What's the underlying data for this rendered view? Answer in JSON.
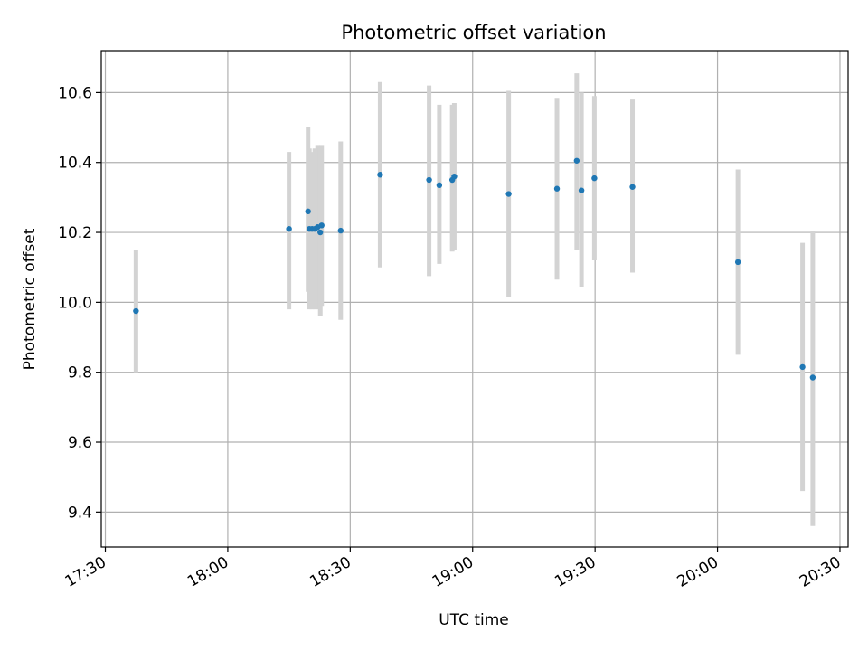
{
  "chart_data": {
    "type": "scatter",
    "title": "Photometric offset variation",
    "xlabel": "UTC time",
    "ylabel": "Photometric offset",
    "grid": true,
    "xlim": [
      "17:29",
      "20:32"
    ],
    "ylim": [
      9.3,
      10.72
    ],
    "x_ticks": [
      "17:30",
      "18:00",
      "18:30",
      "19:00",
      "19:30",
      "20:00",
      "20:30"
    ],
    "y_ticks": [
      9.4,
      9.6,
      9.8,
      10.0,
      10.2,
      10.4,
      10.6
    ],
    "colors": {
      "point": "#1f77b4",
      "errorbar": "#d3d3d3",
      "grid": "#b0b0b0"
    },
    "points": [
      {
        "x": "17:37:30",
        "y": 9.975,
        "ylow": 9.8,
        "yhigh": 10.15
      },
      {
        "x": "18:15:00",
        "y": 10.21,
        "ylow": 9.98,
        "yhigh": 10.43
      },
      {
        "x": "18:19:40",
        "y": 10.26,
        "ylow": 10.03,
        "yhigh": 10.5
      },
      {
        "x": "18:20:00",
        "y": 10.21,
        "ylow": 9.98,
        "yhigh": 10.44
      },
      {
        "x": "18:20:40",
        "y": 10.21,
        "ylow": 9.98,
        "yhigh": 10.43
      },
      {
        "x": "18:21:20",
        "y": 10.21,
        "ylow": 9.98,
        "yhigh": 10.44
      },
      {
        "x": "18:22:00",
        "y": 10.215,
        "ylow": 9.98,
        "yhigh": 10.45
      },
      {
        "x": "18:22:40",
        "y": 10.2,
        "ylow": 9.96,
        "yhigh": 10.44
      },
      {
        "x": "18:23:00",
        "y": 10.22,
        "ylow": 9.99,
        "yhigh": 10.45
      },
      {
        "x": "18:27:40",
        "y": 10.205,
        "ylow": 9.95,
        "yhigh": 10.46
      },
      {
        "x": "18:37:20",
        "y": 10.365,
        "ylow": 10.1,
        "yhigh": 10.63
      },
      {
        "x": "18:49:20",
        "y": 10.35,
        "ylow": 10.075,
        "yhigh": 10.62
      },
      {
        "x": "18:51:50",
        "y": 10.335,
        "ylow": 10.11,
        "yhigh": 10.565
      },
      {
        "x": "18:55:00",
        "y": 10.35,
        "ylow": 10.145,
        "yhigh": 10.565
      },
      {
        "x": "18:55:30",
        "y": 10.36,
        "ylow": 10.15,
        "yhigh": 10.57
      },
      {
        "x": "19:08:50",
        "y": 10.31,
        "ylow": 10.015,
        "yhigh": 10.605
      },
      {
        "x": "19:20:40",
        "y": 10.325,
        "ylow": 10.065,
        "yhigh": 10.585
      },
      {
        "x": "19:25:30",
        "y": 10.405,
        "ylow": 10.15,
        "yhigh": 10.655
      },
      {
        "x": "19:26:40",
        "y": 10.32,
        "ylow": 10.045,
        "yhigh": 10.6
      },
      {
        "x": "19:29:50",
        "y": 10.355,
        "ylow": 10.12,
        "yhigh": 10.59
      },
      {
        "x": "19:39:10",
        "y": 10.33,
        "ylow": 10.085,
        "yhigh": 10.58
      },
      {
        "x": "20:05:00",
        "y": 10.115,
        "ylow": 9.85,
        "yhigh": 10.38
      },
      {
        "x": "20:20:50",
        "y": 9.815,
        "ylow": 9.46,
        "yhigh": 10.17
      },
      {
        "x": "20:23:20",
        "y": 9.785,
        "ylow": 9.36,
        "yhigh": 10.205
      }
    ]
  }
}
